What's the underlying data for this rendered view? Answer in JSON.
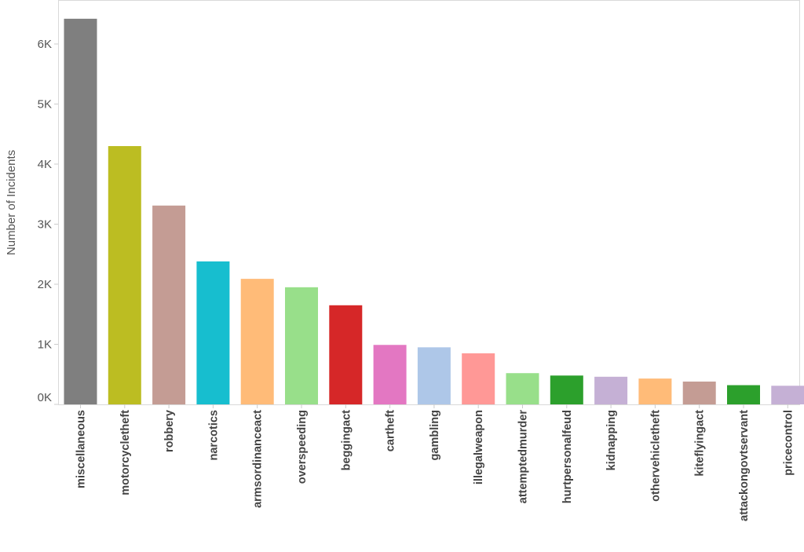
{
  "chart_data": {
    "type": "bar",
    "ylabel": "Number of Incidents",
    "xlabel": "",
    "title": "",
    "ylim": [
      0,
      6500
    ],
    "yticks": [
      {
        "value": 0,
        "label": "0K"
      },
      {
        "value": 1000,
        "label": "1K"
      },
      {
        "value": 2000,
        "label": "2K"
      },
      {
        "value": 3000,
        "label": "3K"
      },
      {
        "value": 4000,
        "label": "4K"
      },
      {
        "value": 5000,
        "label": "5K"
      },
      {
        "value": 6000,
        "label": "6K"
      }
    ],
    "grid": false,
    "categories": [
      "miscellaneous",
      "motorcycletheft",
      "robbery",
      "narcotics",
      "armsordinanceact",
      "overspeeding",
      "beggingact",
      "cartheft",
      "gambling",
      "illegalweapon",
      "attemptedmurder",
      "hurtpersonalfeud",
      "kidnapping",
      "othervehicletheft",
      "kiteflyingact",
      "attackongovtservant",
      "pricecontrol"
    ],
    "values": [
      6420,
      4300,
      3310,
      2380,
      2090,
      1950,
      1650,
      990,
      950,
      850,
      520,
      480,
      460,
      430,
      380,
      320,
      310
    ],
    "colors": [
      "#7f7f7f",
      "#bcbd22",
      "#c49c94",
      "#17becf",
      "#ffbb78",
      "#98df8a",
      "#d62728",
      "#e377c2",
      "#aec7e8",
      "#ff9896",
      "#98df8a",
      "#2ca02c",
      "#c5b0d5",
      "#ffbb78",
      "#c49c94",
      "#2ca02c",
      "#c5b0d5"
    ]
  }
}
